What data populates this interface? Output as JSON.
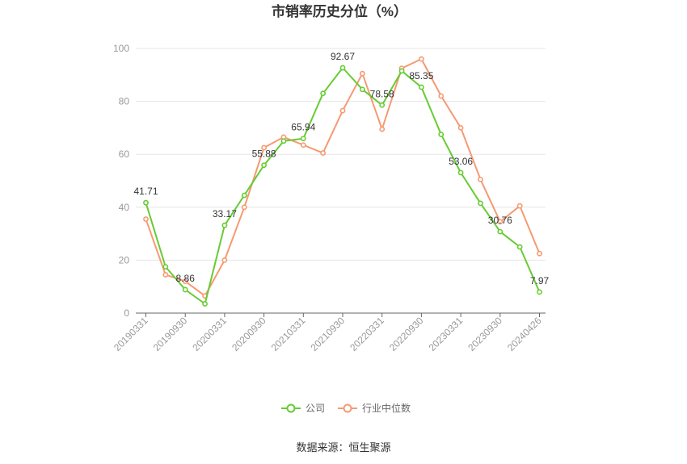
{
  "chart_data": {
    "type": "line",
    "title": "市销率历史分位（%）",
    "xlabel": "",
    "ylabel": "",
    "ylim": [
      0,
      100
    ],
    "yticks": [
      0,
      20,
      40,
      60,
      80,
      100
    ],
    "x": [
      "20190331",
      "20190630",
      "20190930",
      "20191231",
      "20200331",
      "20200630",
      "20200930",
      "20201231",
      "20210331",
      "20210630",
      "20210930",
      "20211231",
      "20220331",
      "20220630",
      "20220930",
      "20221231",
      "20230331",
      "20230630",
      "20230930",
      "20231231",
      "20240426"
    ],
    "xtick_labels": [
      "20190331",
      "20190930",
      "20200331",
      "20200930",
      "20210331",
      "20210930",
      "20220331",
      "20220930",
      "20230331",
      "20230930",
      "20240426"
    ],
    "xtick_indices": [
      0,
      2,
      4,
      6,
      8,
      10,
      12,
      14,
      16,
      18,
      20
    ],
    "series": [
      {
        "name": "公司",
        "color": "#66cc33",
        "values": [
          41.71,
          17.5,
          8.86,
          3.5,
          33.17,
          44.5,
          55.88,
          65.0,
          65.94,
          83.0,
          92.67,
          84.5,
          78.58,
          91.5,
          85.35,
          67.5,
          53.06,
          41.5,
          30.76,
          25.0,
          7.97
        ],
        "labeled_indices": [
          0,
          2,
          4,
          6,
          8,
          10,
          12,
          14,
          16,
          18,
          20
        ]
      },
      {
        "name": "行业中位数",
        "color": "#f59a73",
        "values": [
          35.5,
          14.5,
          12.0,
          6.5,
          20.0,
          40.0,
          62.5,
          66.5,
          63.5,
          60.5,
          76.5,
          90.5,
          69.5,
          92.5,
          96.0,
          82.0,
          70.0,
          50.5,
          34.5,
          40.5,
          22.5
        ]
      }
    ],
    "legend_position": "bottom-center",
    "grid": true
  },
  "source_text": "数据来源：恒生聚源"
}
